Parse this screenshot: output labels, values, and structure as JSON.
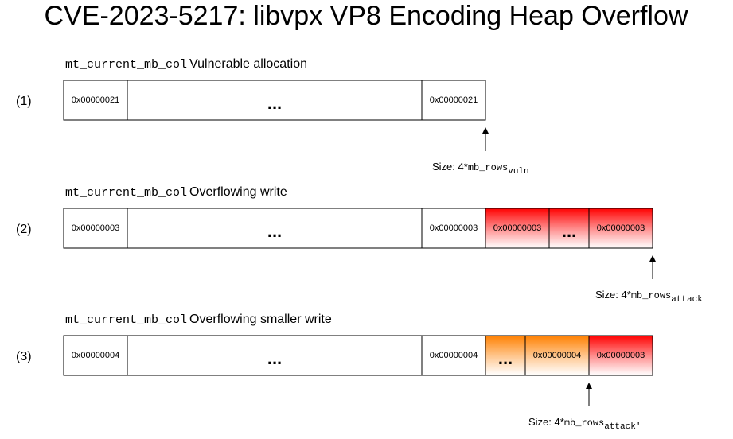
{
  "title": "CVE-2023-5217: libvpx VP8 Encoding Heap Overflow",
  "rows": [
    {
      "label": "(1)",
      "caption": {
        "code": "mt_current_mb_col",
        "text": "Vulnerable allocation"
      },
      "cells": [
        {
          "text": "0x00000021"
        },
        {
          "text": "..."
        },
        {
          "text": "0x00000021"
        }
      ],
      "size": {
        "prefix": "Size: 4*",
        "code": "mb_rows",
        "sub": "vuln"
      }
    },
    {
      "label": "(2)",
      "caption": {
        "code": "mt_current_mb_col",
        "text": "Overflowing write"
      },
      "cells": [
        {
          "text": "0x00000003"
        },
        {
          "text": "..."
        },
        {
          "text": "0x00000003"
        },
        {
          "text": "0x00000003",
          "color": "#ff0000"
        },
        {
          "text": "...",
          "color": "#ff0000"
        },
        {
          "text": "0x00000003",
          "color": "#ff0000"
        }
      ],
      "size": {
        "prefix": "Size: 4*",
        "code": "mb_rows",
        "sub": "attack"
      }
    },
    {
      "label": "(3)",
      "caption": {
        "code": "mt_current_mb_col",
        "text": "Overflowing smaller write"
      },
      "cells": [
        {
          "text": "0x00000004"
        },
        {
          "text": "..."
        },
        {
          "text": "0x00000004"
        },
        {
          "text": "...",
          "color": "#ff8000"
        },
        {
          "text": "0x00000004",
          "color": "#ff8000"
        },
        {
          "text": "0x00000003",
          "color": "#ff0000"
        }
      ],
      "size": {
        "prefix": "Size: 4*",
        "code": "mb_rows",
        "sub": "attack'"
      }
    }
  ]
}
